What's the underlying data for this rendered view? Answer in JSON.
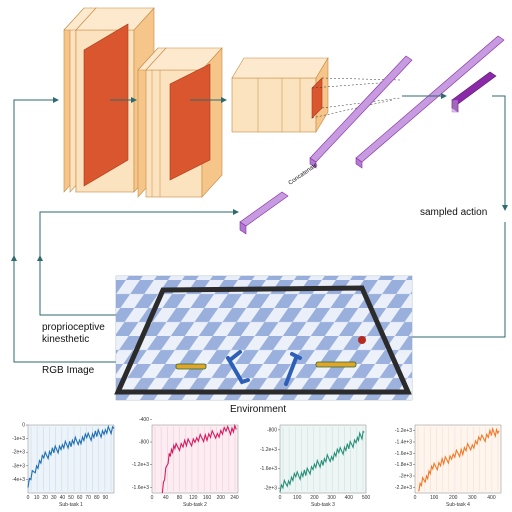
{
  "labels": {
    "concatenate": "Concatenate",
    "sampled_action": "sampled action",
    "proprioceptive": "proprioceptive",
    "kinesthetic": "kinesthetic",
    "rgb_image": "RGB Image",
    "environment": "Environment"
  },
  "colors": {
    "feature_map": "#d9562e",
    "slab_face": "#fbe3bf",
    "slab_side": "#f5c58a",
    "vector": "#c79be0",
    "vector_dark": "#8a2aa8",
    "arrow": "#2e6a6e",
    "board_light": "#e8edf6",
    "board_dark": "#8fa7d8"
  },
  "chart_data": [
    {
      "type": "line",
      "title": "Sub-task 1",
      "color": "#1f6fb4",
      "xlim": [
        0,
        100
      ],
      "ylim": [
        -5000,
        0
      ],
      "xticks": [
        "0",
        "10",
        "20",
        "30",
        "40",
        "50",
        "60",
        "70",
        "80",
        "90"
      ],
      "yticks": [
        "0",
        "-1e+3",
        "-2e+3",
        "-3e+3",
        "-4e+3"
      ],
      "ytick_values": [
        0,
        -1000,
        -2000,
        -3000,
        -4000
      ],
      "xtick_values": [
        0,
        10,
        20,
        30,
        40,
        50,
        60,
        70,
        80,
        90
      ],
      "x": [
        0,
        10,
        20,
        30,
        40,
        50,
        60,
        70,
        80,
        90,
        100
      ],
      "y": [
        -4300,
        -3000,
        -2300,
        -1900,
        -1600,
        -1300,
        -1100,
        -900,
        -700,
        -500,
        -250
      ]
    },
    {
      "type": "line",
      "title": "Sub-task 2",
      "color": "#d81b60",
      "xlim": [
        0,
        250
      ],
      "ylim": [
        -1700,
        -500
      ],
      "xticks": [
        "0",
        "40",
        "80",
        "120",
        "160",
        "200",
        "240"
      ],
      "xtick_values": [
        0,
        40,
        80,
        120,
        160,
        200,
        240
      ],
      "yticks": [
        "-400",
        "-800",
        "-1.2e+3",
        "-1.6e+3"
      ],
      "ytick_values": [
        -400,
        -800,
        -1200,
        -1600
      ],
      "x": [
        30,
        50,
        70,
        100,
        130,
        160,
        190,
        220,
        245
      ],
      "y": [
        -1650,
        -1000,
        -900,
        -830,
        -760,
        -700,
        -650,
        -600,
        -580
      ]
    },
    {
      "type": "line",
      "title": "Sub-task 3",
      "color": "#2a8f7a",
      "xlim": [
        0,
        500
      ],
      "ylim": [
        -2100,
        -700
      ],
      "xticks": [
        "0",
        "100",
        "200",
        "300",
        "400",
        "500"
      ],
      "xtick_values": [
        0,
        100,
        200,
        300,
        400,
        500
      ],
      "yticks": [
        "-800",
        "-1.2e+3",
        "-1.6e+3",
        "-2e+3"
      ],
      "ytick_values": [
        -800,
        -1200,
        -1600,
        -2000
      ],
      "x": [
        0,
        50,
        100,
        150,
        200,
        250,
        300,
        350,
        400,
        450,
        490
      ],
      "y": [
        -2000,
        -1850,
        -1750,
        -1700,
        -1550,
        -1450,
        -1350,
        -1250,
        -1150,
        -1000,
        -850
      ]
    },
    {
      "type": "line",
      "title": "Sub-task 4",
      "color": "#f07a2a",
      "xlim": [
        0,
        450
      ],
      "ylim": [
        -2300,
        -1100
      ],
      "xticks": [
        "0",
        "100",
        "200",
        "300",
        "400"
      ],
      "xtick_values": [
        0,
        100,
        200,
        300,
        400
      ],
      "yticks": [
        "-1.2e+3",
        "-1.4e+3",
        "-1.6e+3",
        "-1.8e+3",
        "-2e+3",
        "-2.2e+3"
      ],
      "ytick_values": [
        -1200,
        -1400,
        -1600,
        -1800,
        -2000,
        -2200
      ],
      "x": [
        20,
        60,
        100,
        150,
        200,
        250,
        300,
        350,
        400,
        440
      ],
      "y": [
        -2200,
        -2000,
        -1850,
        -1750,
        -1650,
        -1550,
        -1450,
        -1350,
        -1250,
        -1200
      ]
    }
  ]
}
